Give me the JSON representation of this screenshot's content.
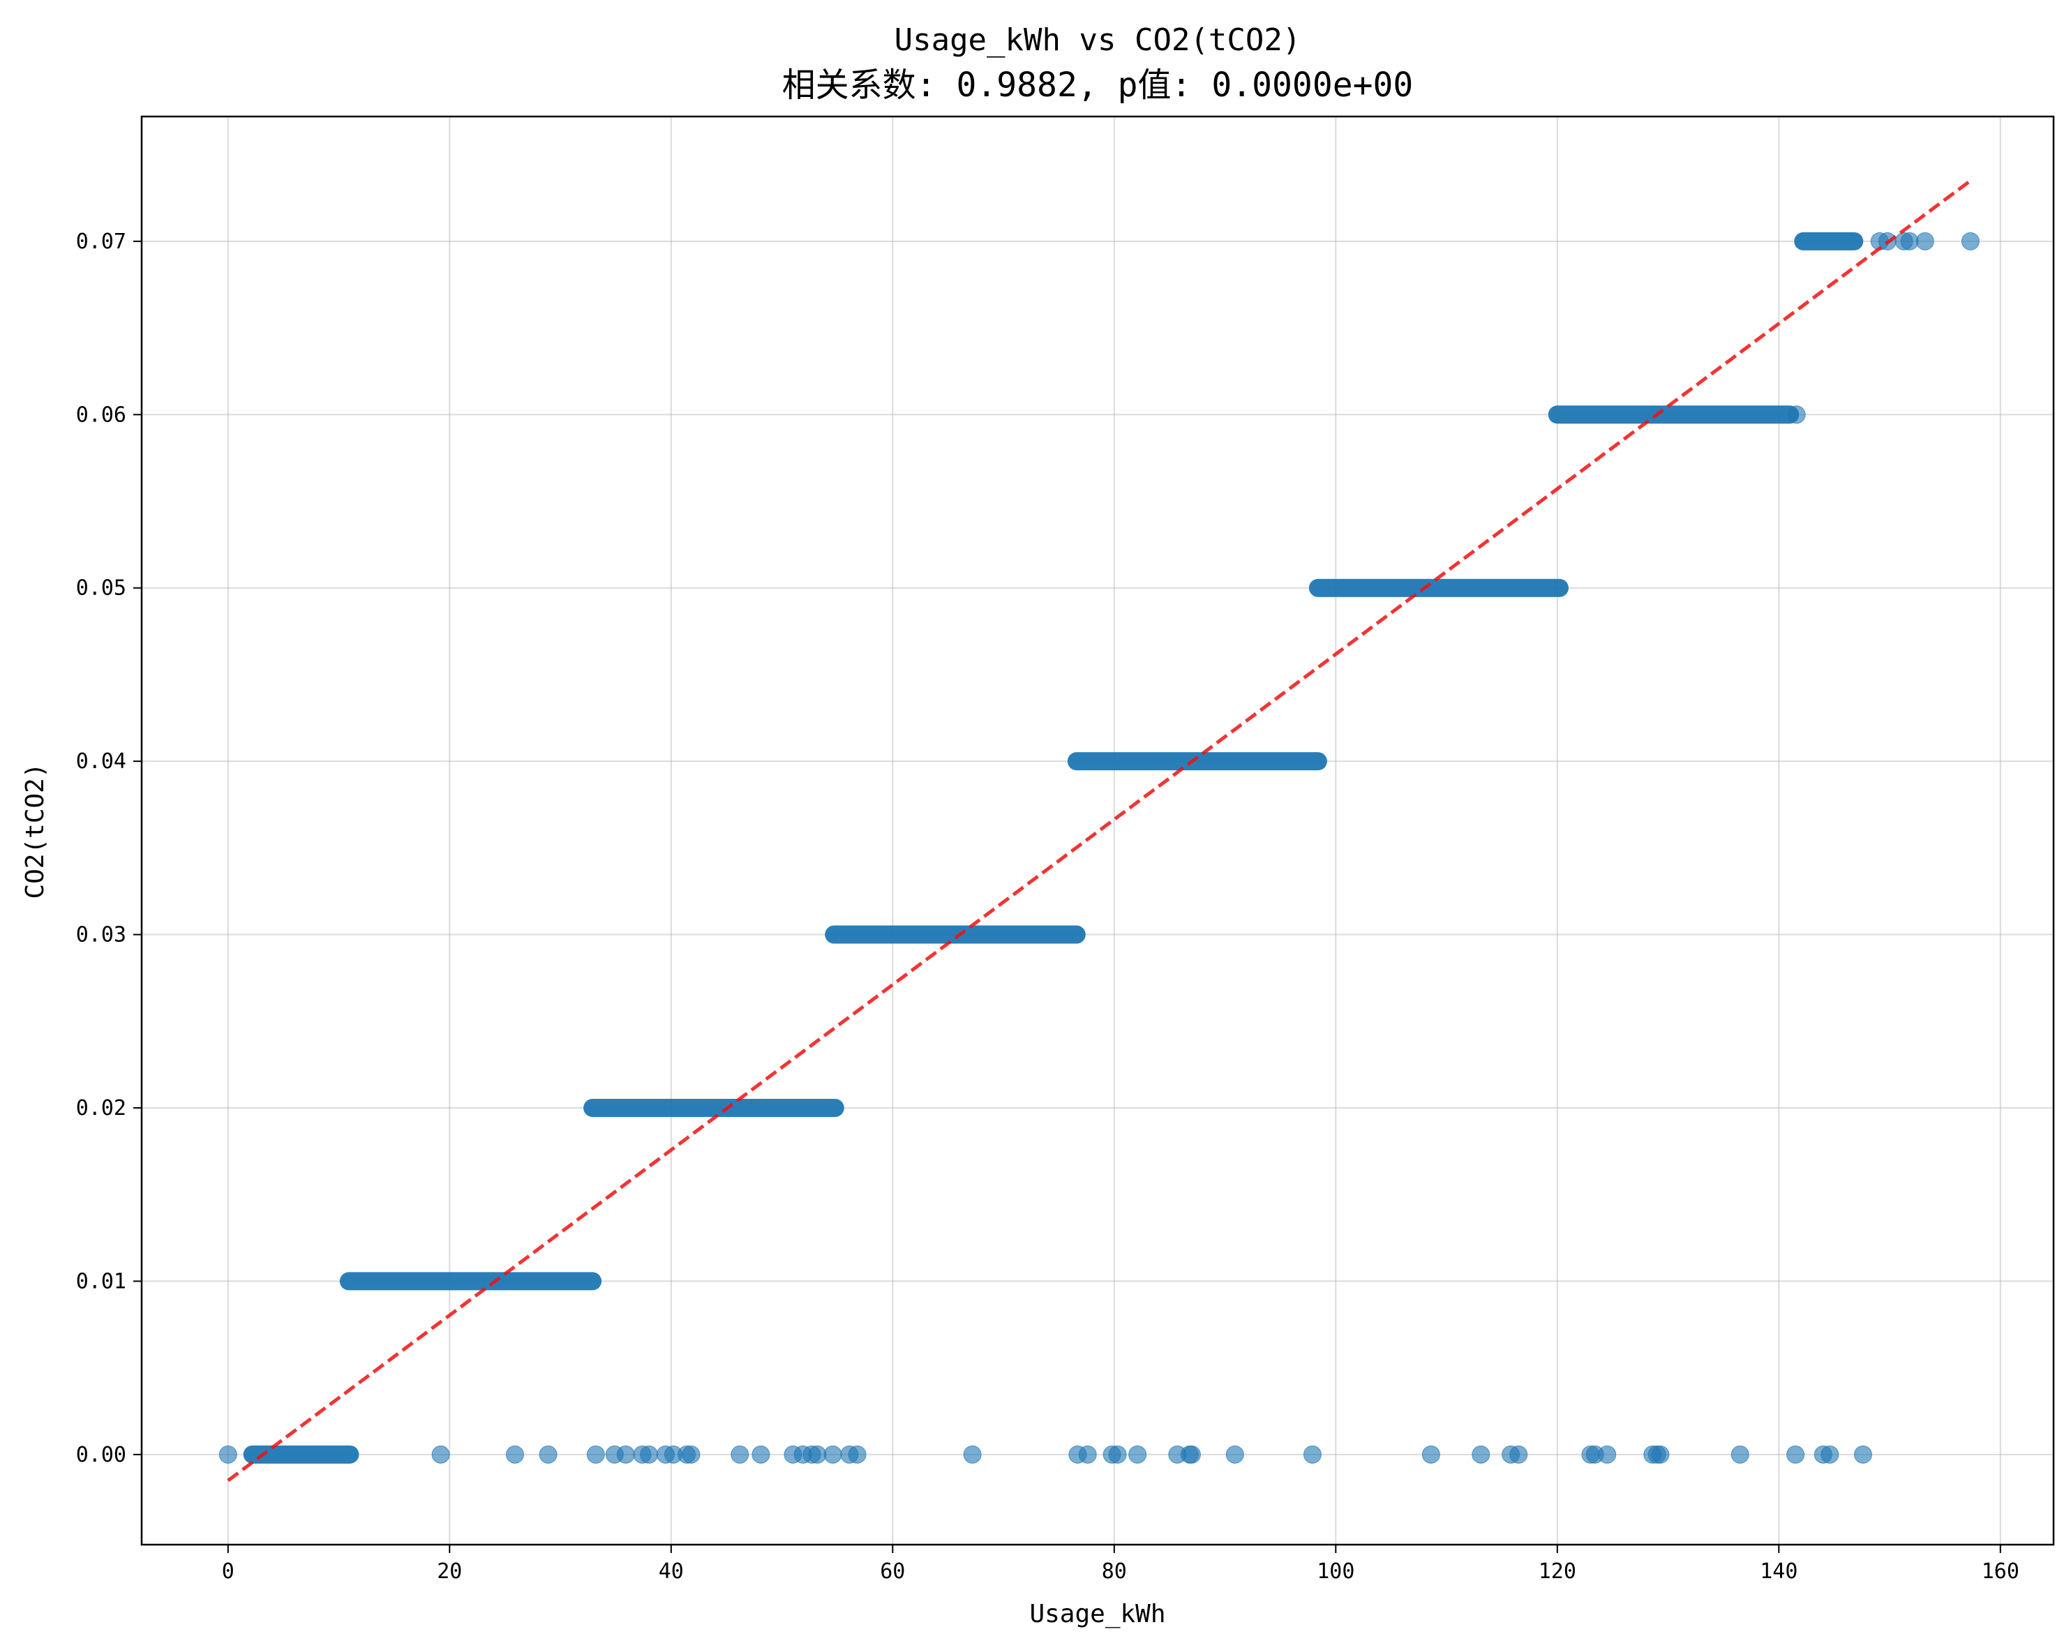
{
  "chart_data": {
    "type": "scatter",
    "title": "Usage_kWh vs CO2(tCO2)",
    "subtitle": "相关系数: 0.9882, p值: 0.0000e+00",
    "xlabel": "Usage_kWh",
    "ylabel": "CO2(tCO2)",
    "xlim": [
      -7.8,
      164.8
    ],
    "ylim": [
      -0.0052,
      0.0772
    ],
    "x_ticks": [
      0,
      20,
      40,
      60,
      80,
      100,
      120,
      140,
      160
    ],
    "y_ticks": [
      0.0,
      0.01,
      0.02,
      0.03,
      0.04,
      0.05,
      0.06,
      0.07
    ],
    "x_tick_labels": [
      "0",
      "20",
      "40",
      "60",
      "80",
      "100",
      "120",
      "140",
      "160"
    ],
    "y_tick_labels": [
      "0.00",
      "0.01",
      "0.02",
      "0.03",
      "0.04",
      "0.05",
      "0.06",
      "0.07"
    ],
    "grid": true,
    "point_color": "#1f77b4",
    "point_alpha": 0.6,
    "trend_color": "#ee1111",
    "bands": [
      {
        "y": 0.0,
        "x_start": 2.2,
        "x_end": 11.0
      },
      {
        "y": 0.01,
        "x_start": 10.9,
        "x_end": 32.9
      },
      {
        "y": 0.02,
        "x_start": 32.9,
        "x_end": 54.8
      },
      {
        "y": 0.03,
        "x_start": 54.7,
        "x_end": 76.6
      },
      {
        "y": 0.04,
        "x_start": 76.6,
        "x_end": 98.4
      },
      {
        "y": 0.05,
        "x_start": 98.4,
        "x_end": 120.2
      },
      {
        "y": 0.06,
        "x_start": 120.0,
        "x_end": 141.0
      },
      {
        "y": 0.07,
        "x_start": 142.2,
        "x_end": 146.8
      }
    ],
    "points": [
      {
        "x": 0.0,
        "y": 0.0
      },
      {
        "x": 19.2,
        "y": 0.0
      },
      {
        "x": 25.9,
        "y": 0.0
      },
      {
        "x": 28.9,
        "y": 0.0
      },
      {
        "x": 33.2,
        "y": 0.0
      },
      {
        "x": 34.9,
        "y": 0.0
      },
      {
        "x": 35.9,
        "y": 0.0
      },
      {
        "x": 37.4,
        "y": 0.0
      },
      {
        "x": 38.0,
        "y": 0.0
      },
      {
        "x": 39.5,
        "y": 0.0
      },
      {
        "x": 40.2,
        "y": 0.0
      },
      {
        "x": 41.4,
        "y": 0.0
      },
      {
        "x": 41.8,
        "y": 0.0
      },
      {
        "x": 46.2,
        "y": 0.0
      },
      {
        "x": 48.1,
        "y": 0.0
      },
      {
        "x": 51.0,
        "y": 0.0
      },
      {
        "x": 51.9,
        "y": 0.0
      },
      {
        "x": 52.7,
        "y": 0.0
      },
      {
        "x": 53.2,
        "y": 0.0
      },
      {
        "x": 54.6,
        "y": 0.0
      },
      {
        "x": 56.1,
        "y": 0.0
      },
      {
        "x": 56.8,
        "y": 0.0
      },
      {
        "x": 67.2,
        "y": 0.0
      },
      {
        "x": 76.7,
        "y": 0.0
      },
      {
        "x": 77.6,
        "y": 0.0
      },
      {
        "x": 79.8,
        "y": 0.0
      },
      {
        "x": 80.3,
        "y": 0.0
      },
      {
        "x": 82.1,
        "y": 0.0
      },
      {
        "x": 85.7,
        "y": 0.0
      },
      {
        "x": 86.8,
        "y": 0.0
      },
      {
        "x": 87.0,
        "y": 0.0
      },
      {
        "x": 90.9,
        "y": 0.0
      },
      {
        "x": 97.9,
        "y": 0.0
      },
      {
        "x": 108.6,
        "y": 0.0
      },
      {
        "x": 113.1,
        "y": 0.0
      },
      {
        "x": 115.8,
        "y": 0.0
      },
      {
        "x": 116.5,
        "y": 0.0
      },
      {
        "x": 123.0,
        "y": 0.0
      },
      {
        "x": 123.4,
        "y": 0.0
      },
      {
        "x": 124.5,
        "y": 0.0
      },
      {
        "x": 128.6,
        "y": 0.0
      },
      {
        "x": 129.0,
        "y": 0.0
      },
      {
        "x": 129.3,
        "y": 0.0
      },
      {
        "x": 136.5,
        "y": 0.0
      },
      {
        "x": 141.5,
        "y": 0.0
      },
      {
        "x": 144.0,
        "y": 0.0
      },
      {
        "x": 144.6,
        "y": 0.0
      },
      {
        "x": 147.6,
        "y": 0.0
      },
      {
        "x": 141.6,
        "y": 0.06
      },
      {
        "x": 149.1,
        "y": 0.07
      },
      {
        "x": 149.8,
        "y": 0.07
      },
      {
        "x": 151.3,
        "y": 0.07
      },
      {
        "x": 151.8,
        "y": 0.07
      },
      {
        "x": 153.2,
        "y": 0.07
      },
      {
        "x": 157.3,
        "y": 0.07
      }
    ],
    "trend_line": {
      "x": [
        0.0,
        157.3
      ],
      "y": [
        -0.0015,
        0.0735
      ]
    }
  }
}
